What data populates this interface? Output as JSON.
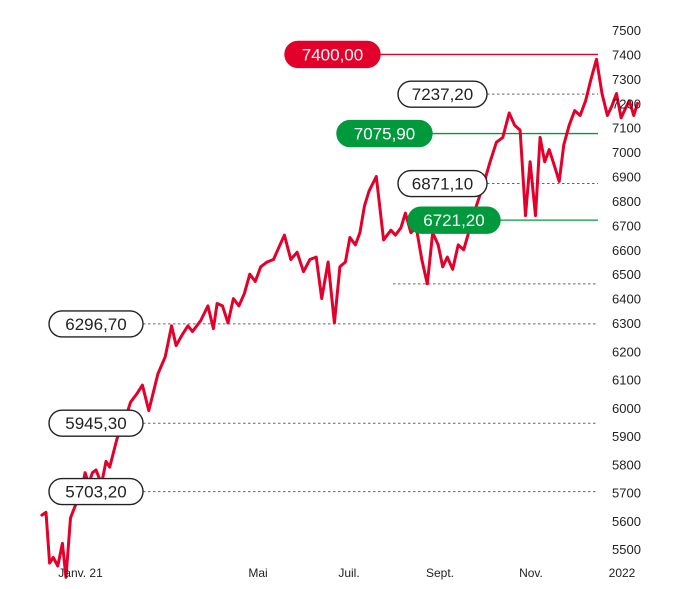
{
  "chart_data": {
    "type": "line",
    "title": "",
    "xlabel": "",
    "ylabel": "",
    "ylim": [
      5430,
      7520
    ],
    "y_ticks": [
      7500,
      7400,
      7300,
      7200,
      7100,
      7000,
      6900,
      6800,
      6700,
      6600,
      6500,
      6400,
      6300,
      6200,
      6100,
      6000,
      5900,
      5800,
      5700,
      5600,
      5500
    ],
    "x_ticks": [
      {
        "label": "Janv. 21",
        "x": 0.1
      },
      {
        "label": "Mai",
        "x": 4.0
      },
      {
        "label": "Juil.",
        "x": 6.0
      },
      {
        "label": "Sept.",
        "x": 8.0
      },
      {
        "label": "Nov.",
        "x": 10.0
      },
      {
        "label": "2022",
        "x": 12.0
      }
    ],
    "line_color": "#e3002b",
    "series": [
      {
        "name": "",
        "x": [
          -0.75,
          -0.66,
          -0.58,
          -0.5,
          -0.4,
          -0.3,
          -0.22,
          -0.12,
          0.0,
          0.14,
          0.2,
          0.28,
          0.36,
          0.44,
          0.56,
          0.66,
          0.74,
          0.9,
          1.08,
          1.2,
          1.34,
          1.46,
          1.6,
          1.8,
          1.96,
          2.1,
          2.2,
          2.34,
          2.46,
          2.56,
          2.74,
          2.9,
          3.02,
          3.1,
          3.22,
          3.34,
          3.46,
          3.58,
          3.7,
          3.82,
          3.94,
          4.06,
          4.2,
          4.34,
          4.46,
          4.58,
          4.72,
          4.86,
          5.0,
          5.14,
          5.28,
          5.4,
          5.54,
          5.68,
          5.8,
          5.92,
          6.02,
          6.14,
          6.24,
          6.34,
          6.44,
          6.6,
          6.76,
          6.92,
          7.02,
          7.14,
          7.24,
          7.36,
          7.48,
          7.6,
          7.72,
          7.84,
          7.96,
          8.06,
          8.16,
          8.28,
          8.4,
          8.52,
          8.66,
          8.8,
          8.96,
          9.1,
          9.24,
          9.38,
          9.52,
          9.64,
          9.76,
          9.88,
          9.98,
          10.1,
          10.2,
          10.3,
          10.4,
          10.52,
          10.62,
          10.72,
          10.84,
          10.96,
          11.08,
          11.2,
          11.32,
          11.44,
          11.56,
          11.68,
          11.78,
          11.88,
          11.98,
          12.08,
          12.16,
          12.26,
          12.34
        ],
        "y": [
          5620,
          5630,
          5450,
          5470,
          5440,
          5520,
          5400,
          5610,
          5660,
          5720,
          5770,
          5730,
          5770,
          5780,
          5730,
          5810,
          5790,
          5890,
          5960,
          6020,
          6050,
          6080,
          5990,
          6120,
          6180,
          6290,
          6220,
          6260,
          6290,
          6270,
          6310,
          6370,
          6280,
          6380,
          6370,
          6300,
          6400,
          6370,
          6420,
          6500,
          6470,
          6530,
          6550,
          6560,
          6610,
          6660,
          6560,
          6590,
          6510,
          6560,
          6570,
          6400,
          6550,
          6300,
          6530,
          6550,
          6650,
          6620,
          6670,
          6780,
          6840,
          6900,
          6640,
          6680,
          6660,
          6690,
          6750,
          6670,
          6690,
          6560,
          6460,
          6670,
          6620,
          6530,
          6570,
          6520,
          6620,
          6600,
          6690,
          6780,
          6870,
          6960,
          7040,
          7060,
          7160,
          7110,
          7090,
          6740,
          6960,
          6740,
          7060,
          6960,
          7010,
          6940,
          6880,
          7030,
          7110,
          7170,
          7150,
          7210,
          7300,
          7380,
          7240,
          7150,
          7190,
          7240,
          7140,
          7180,
          7210,
          7150,
          7200
        ]
      }
    ],
    "annotations": [
      {
        "label": "7400,00",
        "value": 7400.0,
        "style": "red",
        "line": "solid"
      },
      {
        "label": "7237,20",
        "value": 7237.2,
        "style": "outline",
        "line": "dashed"
      },
      {
        "label": "7075,90",
        "value": 7075.9,
        "style": "green",
        "line": "solid"
      },
      {
        "label": "6871,10",
        "value": 6871.1,
        "style": "outline",
        "line": "dashed"
      },
      {
        "label": "6721,20",
        "value": 6721.2,
        "style": "green",
        "line": "solid"
      },
      {
        "label": "6296,70",
        "value": 6296.7,
        "style": "outline",
        "line": "dashed"
      },
      {
        "label": "5945,30",
        "value": 5945.3,
        "style": "outline",
        "line": "dashed"
      },
      {
        "label": "5703,20",
        "value": 5703.2,
        "style": "outline",
        "line": "dashed"
      }
    ],
    "low_marker_value": 6460,
    "colors": {
      "red": "#e3002b",
      "green": "#009a3d",
      "dash": "#666666",
      "text": "#222222"
    }
  }
}
